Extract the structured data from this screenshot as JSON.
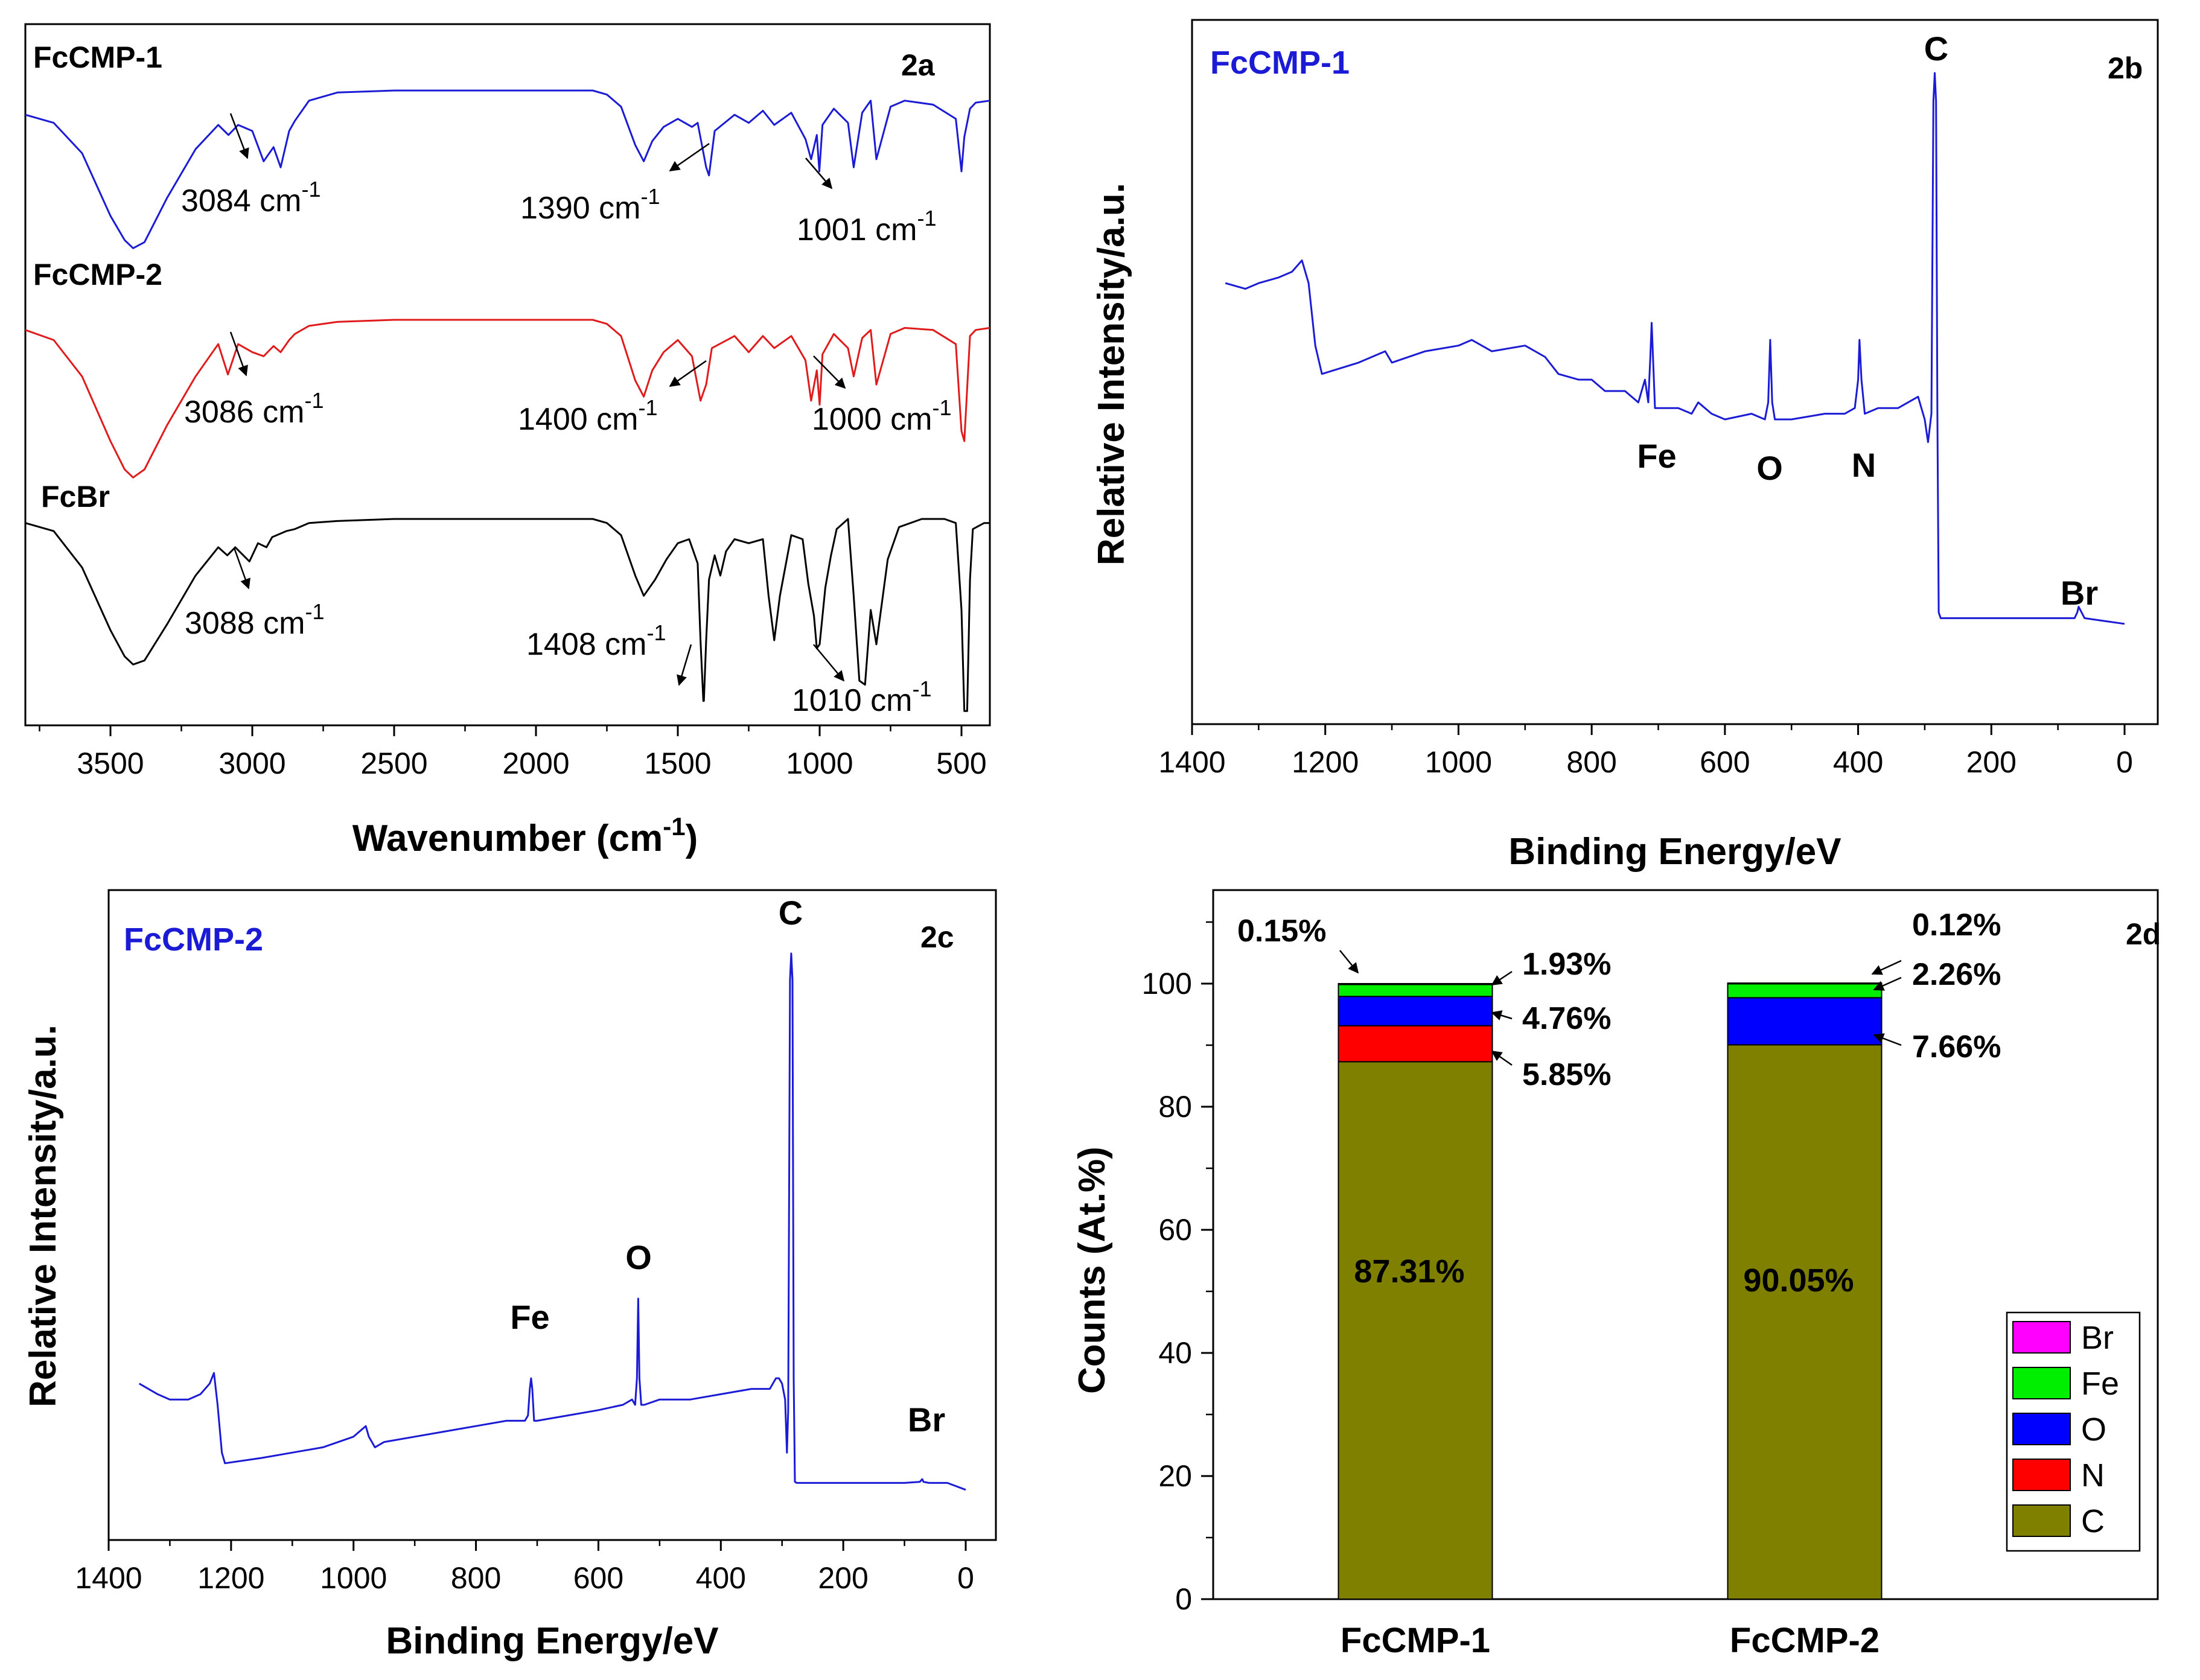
{
  "chart_data": [
    {
      "type": "line",
      "panel": "2a",
      "xlabel": "Wavenumber (cm",
      "xlabel_sup": "-1",
      "xlabel_close": ")",
      "xlim": [
        3800,
        400
      ],
      "xticks": [
        "3500",
        "3000",
        "2500",
        "2000",
        "1500",
        "1000",
        "500"
      ],
      "series": [
        {
          "name": "FcCMP-1",
          "color": "#1b1bd6",
          "x": [
            3800,
            3700,
            3600,
            3500,
            3450,
            3420,
            3380,
            3300,
            3200,
            3120,
            3084,
            3050,
            3000,
            2960,
            2925,
            2900,
            2870,
            2850,
            2800,
            2700,
            2500,
            2000,
            1800,
            1750,
            1700,
            1650,
            1620,
            1590,
            1550,
            1500,
            1450,
            1430,
            1400,
            1390,
            1370,
            1300,
            1250,
            1200,
            1160,
            1100,
            1050,
            1030,
            1010,
            1001,
            990,
            950,
            900,
            880,
            850,
            820,
            800,
            750,
            700,
            600,
            520,
            500,
            490,
            470,
            450,
            400
          ],
          "y": [
            0.88,
            0.84,
            0.69,
            0.38,
            0.26,
            0.22,
            0.25,
            0.47,
            0.71,
            0.83,
            0.78,
            0.83,
            0.8,
            0.65,
            0.72,
            0.62,
            0.8,
            0.85,
            0.95,
            0.99,
            1.0,
            1.0,
            1.0,
            0.98,
            0.92,
            0.73,
            0.65,
            0.75,
            0.82,
            0.86,
            0.82,
            0.84,
            0.62,
            0.58,
            0.8,
            0.88,
            0.84,
            0.9,
            0.83,
            0.89,
            0.76,
            0.66,
            0.78,
            0.6,
            0.83,
            0.91,
            0.84,
            0.62,
            0.89,
            0.95,
            0.66,
            0.92,
            0.95,
            0.93,
            0.86,
            0.6,
            0.77,
            0.91,
            0.94,
            0.95
          ]
        },
        {
          "name": "FcCMP-2",
          "color": "#e01b1b",
          "x": [
            3800,
            3700,
            3600,
            3500,
            3450,
            3420,
            3380,
            3300,
            3200,
            3120,
            3086,
            3050,
            3000,
            2960,
            2925,
            2900,
            2870,
            2850,
            2800,
            2700,
            2500,
            2000,
            1800,
            1750,
            1700,
            1650,
            1620,
            1590,
            1550,
            1500,
            1450,
            1420,
            1400,
            1380,
            1300,
            1250,
            1200,
            1160,
            1100,
            1050,
            1030,
            1010,
            1000,
            990,
            950,
            900,
            880,
            850,
            820,
            800,
            750,
            700,
            600,
            520,
            500,
            490,
            470,
            450,
            400
          ],
          "y": [
            0.95,
            0.9,
            0.72,
            0.4,
            0.26,
            0.22,
            0.26,
            0.48,
            0.72,
            0.88,
            0.73,
            0.88,
            0.84,
            0.82,
            0.87,
            0.84,
            0.9,
            0.93,
            0.97,
            0.99,
            1.0,
            1.0,
            1.0,
            0.98,
            0.92,
            0.7,
            0.62,
            0.75,
            0.84,
            0.9,
            0.82,
            0.6,
            0.68,
            0.86,
            0.92,
            0.84,
            0.92,
            0.86,
            0.92,
            0.8,
            0.6,
            0.75,
            0.58,
            0.83,
            0.93,
            0.86,
            0.72,
            0.91,
            0.95,
            0.68,
            0.93,
            0.96,
            0.95,
            0.88,
            0.45,
            0.4,
            0.92,
            0.95,
            0.96
          ]
        },
        {
          "name": "FcBr",
          "color": "#000000",
          "x": [
            3800,
            3700,
            3600,
            3500,
            3450,
            3420,
            3380,
            3300,
            3200,
            3120,
            3088,
            3060,
            3010,
            2980,
            2950,
            2930,
            2880,
            2850,
            2800,
            2700,
            2500,
            2000,
            1800,
            1750,
            1700,
            1650,
            1620,
            1580,
            1540,
            1500,
            1460,
            1430,
            1420,
            1410,
            1408,
            1400,
            1390,
            1370,
            1350,
            1330,
            1300,
            1250,
            1200,
            1180,
            1160,
            1140,
            1100,
            1060,
            1040,
            1020,
            1010,
            1000,
            980,
            960,
            940,
            900,
            880,
            860,
            840,
            820,
            800,
            760,
            720,
            640,
            560,
            520,
            500,
            490,
            480,
            470,
            460,
            420,
            400
          ],
          "y": [
            0.98,
            0.94,
            0.76,
            0.45,
            0.32,
            0.28,
            0.3,
            0.48,
            0.72,
            0.86,
            0.82,
            0.86,
            0.79,
            0.88,
            0.86,
            0.91,
            0.94,
            0.95,
            0.98,
            0.99,
            1.0,
            1.0,
            1.0,
            0.98,
            0.92,
            0.72,
            0.62,
            0.7,
            0.8,
            0.88,
            0.9,
            0.78,
            0.4,
            0.1,
            0.1,
            0.4,
            0.7,
            0.82,
            0.72,
            0.84,
            0.9,
            0.88,
            0.9,
            0.62,
            0.4,
            0.62,
            0.92,
            0.9,
            0.68,
            0.52,
            0.36,
            0.38,
            0.66,
            0.82,
            0.95,
            1.0,
            0.62,
            0.2,
            0.18,
            0.55,
            0.38,
            0.8,
            0.96,
            1.0,
            1.0,
            0.98,
            0.55,
            0.05,
            0.05,
            0.7,
            0.95,
            0.98,
            0.98
          ]
        }
      ],
      "annotations": [
        "3084 cm",
        "1390 cm",
        "1001 cm",
        "3086 cm",
        "1400 cm",
        "1000 cm",
        "3088 cm",
        "1408 cm",
        "1010 cm"
      ],
      "annotation_sup": "-1"
    },
    {
      "type": "line",
      "panel": "2b",
      "title": "FcCMP-1",
      "xlabel": "Binding Energy/eV",
      "ylabel": "Relative Intensity/a.u.",
      "xlim": [
        1400,
        0
      ],
      "xticks": [
        "1400",
        "1200",
        "1000",
        "800",
        "600",
        "400",
        "200",
        "0"
      ],
      "peak_labels": [
        "C",
        "Fe",
        "O",
        "N",
        "Br"
      ],
      "series": [
        {
          "name": "FcCMP-1",
          "color": "#1b1bd6",
          "x": [
            1350,
            1320,
            1300,
            1270,
            1250,
            1235,
            1225,
            1215,
            1205,
            1150,
            1110,
            1100,
            1050,
            1000,
            980,
            950,
            900,
            870,
            850,
            820,
            800,
            780,
            750,
            730,
            720,
            715,
            712,
            710,
            708,
            705,
            690,
            670,
            650,
            640,
            620,
            600,
            560,
            540,
            535,
            532,
            529,
            525,
            500,
            450,
            420,
            405,
            400,
            398,
            395,
            390,
            370,
            340,
            310,
            300,
            295,
            290,
            287,
            285,
            283,
            281,
            279,
            276,
            270,
            250,
            200,
            150,
            100,
            75,
            71,
            69,
            60,
            30,
            0
          ],
          "y": [
            0.63,
            0.62,
            0.63,
            0.64,
            0.65,
            0.67,
            0.63,
            0.52,
            0.47,
            0.49,
            0.51,
            0.49,
            0.51,
            0.52,
            0.53,
            0.51,
            0.52,
            0.5,
            0.47,
            0.46,
            0.46,
            0.44,
            0.44,
            0.42,
            0.46,
            0.42,
            0.5,
            0.56,
            0.5,
            0.41,
            0.41,
            0.41,
            0.4,
            0.42,
            0.4,
            0.39,
            0.4,
            0.39,
            0.42,
            0.53,
            0.42,
            0.39,
            0.39,
            0.4,
            0.4,
            0.41,
            0.46,
            0.53,
            0.46,
            0.4,
            0.41,
            0.41,
            0.43,
            0.39,
            0.35,
            0.4,
            0.95,
            1.0,
            0.95,
            0.4,
            0.05,
            0.04,
            0.04,
            0.04,
            0.04,
            0.04,
            0.04,
            0.04,
            0.05,
            0.06,
            0.04,
            0.035,
            0.03
          ]
        }
      ]
    },
    {
      "type": "line",
      "panel": "2c",
      "title": "FcCMP-2",
      "xlabel": "Binding Energy/eV",
      "ylabel": "Relative Intensity/a.u.",
      "xlim": [
        1400,
        0
      ],
      "xticks": [
        "1400",
        "1200",
        "1000",
        "800",
        "600",
        "400",
        "200",
        "0"
      ],
      "peak_labels": [
        "C",
        "O",
        "Fe",
        "Br"
      ],
      "series": [
        {
          "name": "FcCMP-2",
          "color": "#1b1bd6",
          "x": [
            1350,
            1320,
            1300,
            1270,
            1250,
            1235,
            1228,
            1222,
            1215,
            1210,
            1150,
            1100,
            1050,
            1000,
            980,
            975,
            965,
            950,
            900,
            850,
            800,
            750,
            720,
            715,
            712,
            710,
            708,
            705,
            700,
            650,
            600,
            560,
            545,
            540,
            537,
            535,
            533,
            530,
            525,
            500,
            450,
            400,
            350,
            320,
            310,
            305,
            300,
            295,
            292,
            290,
            287,
            285,
            283,
            281,
            279,
            276,
            270,
            250,
            200,
            150,
            100,
            75,
            71,
            69,
            60,
            30,
            0
          ],
          "y": [
            0.19,
            0.17,
            0.16,
            0.16,
            0.17,
            0.19,
            0.21,
            0.15,
            0.06,
            0.04,
            0.05,
            0.06,
            0.07,
            0.09,
            0.11,
            0.09,
            0.07,
            0.08,
            0.09,
            0.1,
            0.11,
            0.12,
            0.12,
            0.13,
            0.18,
            0.2,
            0.18,
            0.12,
            0.12,
            0.13,
            0.14,
            0.15,
            0.16,
            0.15,
            0.2,
            0.35,
            0.2,
            0.15,
            0.15,
            0.16,
            0.16,
            0.17,
            0.18,
            0.18,
            0.2,
            0.2,
            0.19,
            0.16,
            0.06,
            0.14,
            0.95,
            1.0,
            0.95,
            0.2,
            0.005,
            0.003,
            0.003,
            0.003,
            0.003,
            0.003,
            0.003,
            0.005,
            0.01,
            0.005,
            0.003,
            0.003,
            -0.01
          ]
        }
      ]
    },
    {
      "type": "bar",
      "panel": "2d",
      "stacked": true,
      "ylabel": "Counts (At.%)",
      "ylim": [
        0,
        115
      ],
      "yticks": [
        "0",
        "20",
        "40",
        "60",
        "80",
        "100"
      ],
      "categories": [
        "FcCMP-1",
        "FcCMP-2"
      ],
      "series": [
        {
          "name": "C",
          "color": "#808000",
          "values": [
            87.31,
            90.05
          ]
        },
        {
          "name": "N",
          "color": "#ff0000",
          "values": [
            5.85,
            0
          ]
        },
        {
          "name": "O",
          "color": "#0000ff",
          "values": [
            4.76,
            7.66
          ]
        },
        {
          "name": "Fe",
          "color": "#00ee00",
          "values": [
            1.93,
            2.26
          ]
        },
        {
          "name": "Br",
          "color": "#ff00ff",
          "values": [
            0.15,
            0.12
          ]
        }
      ],
      "legend": [
        "Br",
        "Fe",
        "O",
        "N",
        "C"
      ],
      "labels_fccmp1": [
        "87.31%",
        "5.85%",
        "4.76%",
        "1.93%",
        "0.15%"
      ],
      "labels_fccmp2": [
        "90.05%",
        "7.66%",
        "2.26%",
        "0.12%"
      ]
    }
  ]
}
